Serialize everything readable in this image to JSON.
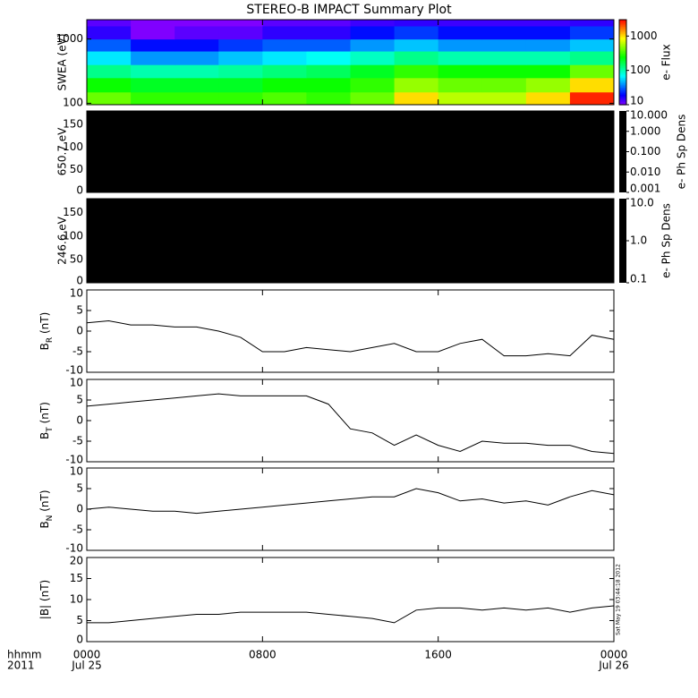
{
  "title": "STEREO-B IMPACT Summary Plot",
  "stamp": "Sat May 19 03:44:18 2012",
  "x_axis": {
    "xlim": [
      0,
      24
    ],
    "xticks": [
      {
        "value": 0,
        "label": "0000"
      },
      {
        "value": 8,
        "label": "0800"
      },
      {
        "value": 16,
        "label": "1600"
      },
      {
        "value": 24,
        "label": "0000"
      }
    ],
    "date_labels": [
      {
        "value": 0,
        "label": "Jul 25"
      },
      {
        "value": 24,
        "label": "Jul 26"
      }
    ],
    "row_labels": [
      "hhmm",
      "2011"
    ]
  },
  "chart_data": [
    {
      "type": "heatmap",
      "ylabel": "SWEA (eV)",
      "log": true,
      "ylim": [
        95,
        2000
      ],
      "yticks": [
        100,
        1000
      ],
      "x_edges": [
        0,
        2,
        4,
        6,
        8,
        10,
        12,
        14,
        16,
        18,
        20,
        22,
        24
      ],
      "y_edges": [
        95,
        150,
        250,
        400,
        650,
        1000,
        1600,
        2000
      ],
      "values": [
        [
          400,
          300,
          300,
          300,
          350,
          300,
          400,
          1000,
          600,
          600,
          1000,
          2500
        ],
        [
          250,
          200,
          200,
          200,
          250,
          250,
          300,
          500,
          400,
          400,
          500,
          1000
        ],
        [
          120,
          100,
          100,
          110,
          130,
          150,
          200,
          300,
          250,
          250,
          250,
          400
        ],
        [
          60,
          40,
          40,
          50,
          60,
          70,
          90,
          120,
          100,
          100,
          100,
          120
        ],
        [
          30,
          20,
          20,
          25,
          30,
          30,
          40,
          50,
          40,
          40,
          40,
          50
        ],
        [
          15,
          10,
          12,
          12,
          15,
          15,
          20,
          25,
          20,
          20,
          20,
          25
        ],
        [
          12,
          10,
          10,
          10,
          12,
          12,
          14,
          15,
          14,
          14,
          14,
          15
        ]
      ],
      "colorbar": {
        "label": "e- Flux",
        "log": true,
        "lim": [
          10,
          3000
        ],
        "ticks": [
          10,
          100,
          1000
        ]
      }
    },
    {
      "type": "heatmap",
      "ylabel": "650.7 eV",
      "fill": "#000000",
      "ylim": [
        0,
        180
      ],
      "yticks": [
        0,
        50,
        100,
        150
      ],
      "colorbar": {
        "label": "e- Ph Sp Dens",
        "log": true,
        "color": "#000000",
        "lim": [
          0.001,
          10
        ],
        "ticks": [
          {
            "value": 10,
            "label": "10.000"
          },
          {
            "value": 1,
            "label": "1.000"
          },
          {
            "value": 0.1,
            "label": "0.100"
          },
          {
            "value": 0.01,
            "label": "0.010"
          },
          {
            "value": 0.001,
            "label": "0.001"
          }
        ]
      }
    },
    {
      "type": "heatmap",
      "ylabel": "246.6 eV",
      "fill": "#000000",
      "ylim": [
        0,
        180
      ],
      "yticks": [
        0,
        50,
        100,
        150
      ],
      "colorbar": {
        "label": "e- Ph Sp Dens",
        "log": true,
        "color": "#000000",
        "lim": [
          0.1,
          10
        ],
        "ticks": [
          {
            "value": 10,
            "label": "10.0"
          },
          {
            "value": 1,
            "label": "1.0"
          },
          {
            "value": 0.1,
            "label": "0.1"
          }
        ]
      }
    },
    {
      "type": "line",
      "ylabel": [
        "B",
        "R",
        " (nT)"
      ],
      "color": "#000000",
      "ylim": [
        -10,
        10
      ],
      "yticks": [
        -10,
        -5,
        0,
        5,
        10
      ],
      "x": [
        0,
        1,
        2,
        3,
        4,
        5,
        6,
        7,
        8,
        9,
        10,
        11,
        12,
        13,
        14,
        15,
        16,
        17,
        18,
        19,
        20,
        21,
        22,
        23,
        24
      ],
      "values": [
        2,
        2.5,
        1.5,
        1.5,
        1,
        1,
        0,
        -1.5,
        -5,
        -5,
        -4,
        -4.5,
        -5,
        -4,
        -3,
        -5,
        -5,
        -3,
        -2,
        -6,
        -6,
        -5.5,
        -6,
        -1,
        -2
      ]
    },
    {
      "type": "line",
      "ylabel": [
        "B",
        "T",
        " (nT)"
      ],
      "color": "#000000",
      "ylim": [
        -10,
        10
      ],
      "yticks": [
        -10,
        -5,
        0,
        5,
        10
      ],
      "x": [
        0,
        1,
        2,
        3,
        4,
        5,
        6,
        7,
        8,
        9,
        10,
        11,
        12,
        13,
        14,
        15,
        16,
        17,
        18,
        19,
        20,
        21,
        22,
        23,
        24
      ],
      "values": [
        3.5,
        4,
        4.5,
        5,
        5.5,
        6,
        6.5,
        6,
        6,
        6,
        6,
        4,
        -2,
        -3,
        -6,
        -3.5,
        -6,
        -7.5,
        -5,
        -5.5,
        -5.5,
        -6,
        -6,
        -7.5,
        -8
      ]
    },
    {
      "type": "line",
      "ylabel": [
        "B",
        "N",
        " (nT)"
      ],
      "color": "#000000",
      "ylim": [
        -10,
        10
      ],
      "yticks": [
        -10,
        -5,
        0,
        5,
        10
      ],
      "x": [
        0,
        1,
        2,
        3,
        4,
        5,
        6,
        7,
        8,
        9,
        10,
        11,
        12,
        13,
        14,
        15,
        16,
        17,
        18,
        19,
        20,
        21,
        22,
        23,
        24
      ],
      "values": [
        0,
        0.5,
        0,
        -0.5,
        -0.5,
        -1,
        -0.5,
        0,
        0.5,
        1,
        1.5,
        2,
        2.5,
        3,
        3,
        5,
        4,
        2,
        2.5,
        1.5,
        2,
        1,
        3,
        4.5,
        3.5
      ]
    },
    {
      "type": "line",
      "ylabel": [
        "|B| (nT)"
      ],
      "color": "#000000",
      "ylim": [
        0,
        20
      ],
      "yticks": [
        0,
        5,
        10,
        15,
        20
      ],
      "x": [
        0,
        1,
        2,
        3,
        4,
        5,
        6,
        7,
        8,
        9,
        10,
        11,
        12,
        13,
        14,
        15,
        16,
        17,
        18,
        19,
        20,
        21,
        22,
        23,
        24
      ],
      "values": [
        4.5,
        4.5,
        5,
        5.5,
        6,
        6.5,
        6.5,
        7,
        7,
        7,
        7,
        6.5,
        6,
        5.5,
        4.5,
        7.5,
        8,
        8,
        7.5,
        8,
        7.5,
        8,
        7,
        8,
        8.5
      ]
    }
  ]
}
